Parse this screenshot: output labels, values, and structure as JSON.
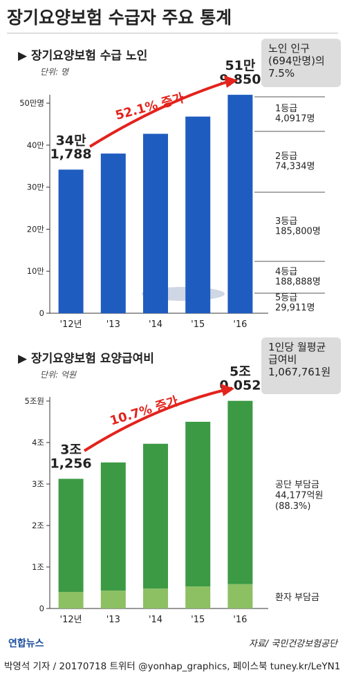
{
  "header": {
    "title": "장기요양보험 수급자 주요 통계"
  },
  "chart_data": [
    {
      "type": "bar",
      "title": "▶ 장기요양보험 수급 노인",
      "unit": "단위: 명",
      "categories": [
        "'12년",
        "'13",
        "'14",
        "'15",
        "'16"
      ],
      "values": [
        34.1788,
        38.0,
        42.7,
        46.8,
        51.985
      ],
      "value_labels": [
        "34만\n1,788",
        null,
        null,
        null,
        "51만\n9,850"
      ],
      "color": "#1f5cc0",
      "ylim": [
        0,
        52
      ],
      "yticks": [
        0,
        {
          "value": 10,
          "label": "10만"
        },
        {
          "value": 20,
          "label": "20만"
        },
        {
          "value": 30,
          "label": "30만"
        },
        {
          "value": 40,
          "label": "40만"
        },
        {
          "value": 50,
          "label": "50만명"
        }
      ],
      "growth_label": "52.1% 증가",
      "callout": "노인 인구\n(694만명)의\n7.5%",
      "breakdown": [
        "1등급\n4,0917명",
        "2등급\n74,334명",
        "3등급\n185,800명",
        "4등급\n188,888명",
        "5등급\n29,911명"
      ]
    },
    {
      "type": "stacked_bar",
      "title": "▶ 장기요양보험 요양급여비",
      "unit": "단위: 억원",
      "categories": [
        "'12년",
        "'13",
        "'14",
        "'15",
        "'16"
      ],
      "series": [
        {
          "name": "환자 부담금",
          "color": "#8cc063",
          "values": [
            0.4,
            0.43,
            0.48,
            0.53,
            0.5875
          ]
        },
        {
          "name": "공단 부담금\n44,177억원\n(88.3%)",
          "color": "#3c9a44",
          "values": [
            2.7256,
            3.09,
            3.49,
            3.97,
            4.4177
          ]
        }
      ],
      "total_labels": [
        "3조\n1,256",
        null,
        null,
        null,
        "5조\n0,052"
      ],
      "ylim": [
        0,
        5.1
      ],
      "yticks": [
        0,
        {
          "value": 1,
          "label": "1조"
        },
        {
          "value": 2,
          "label": "2조"
        },
        {
          "value": 3,
          "label": "3조"
        },
        {
          "value": 4,
          "label": "4조"
        },
        {
          "value": 5,
          "label": "5조원"
        }
      ],
      "growth_label": "10.7% 증가",
      "callout": "1인당 월평균\n급여비\n1,067,761원"
    }
  ],
  "source": "자료/ 국민건강보험공단",
  "logo": "연합뉴스",
  "byline": "박영석 기자 / 20170718 트위터 @yonhap_graphics, 페이스북 tuney.kr/LeYN1"
}
